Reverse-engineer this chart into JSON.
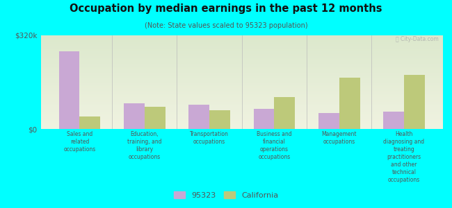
{
  "title": "Occupation by median earnings in the past 12 months",
  "subtitle": "(Note: State values scaled to 95323 population)",
  "categories": [
    "Sales and\nrelated\noccupations",
    "Education,\ntraining, and\nlibrary\noccupations",
    "Transportation\noccupations",
    "Business and\nfinancial\noperations\noccupations",
    "Management\noccupations",
    "Health\ndiagnosing and\ntreating\npractitioners\nand other\ntechnical\noccupations"
  ],
  "values_95323": [
    265000,
    88000,
    82000,
    68000,
    55000,
    60000
  ],
  "values_california": [
    42000,
    75000,
    65000,
    110000,
    175000,
    185000
  ],
  "ylim": [
    0,
    320000
  ],
  "yticks": [
    0,
    320000
  ],
  "yticklabels": [
    "$0",
    "$320k"
  ],
  "color_95323": "#c9a8d4",
  "color_california": "#bdc97a",
  "background_color": "#00ffff",
  "legend_label_95323": "95323",
  "legend_label_california": "California",
  "bar_width": 0.32,
  "watermark": "ⓘ City-Data.com"
}
